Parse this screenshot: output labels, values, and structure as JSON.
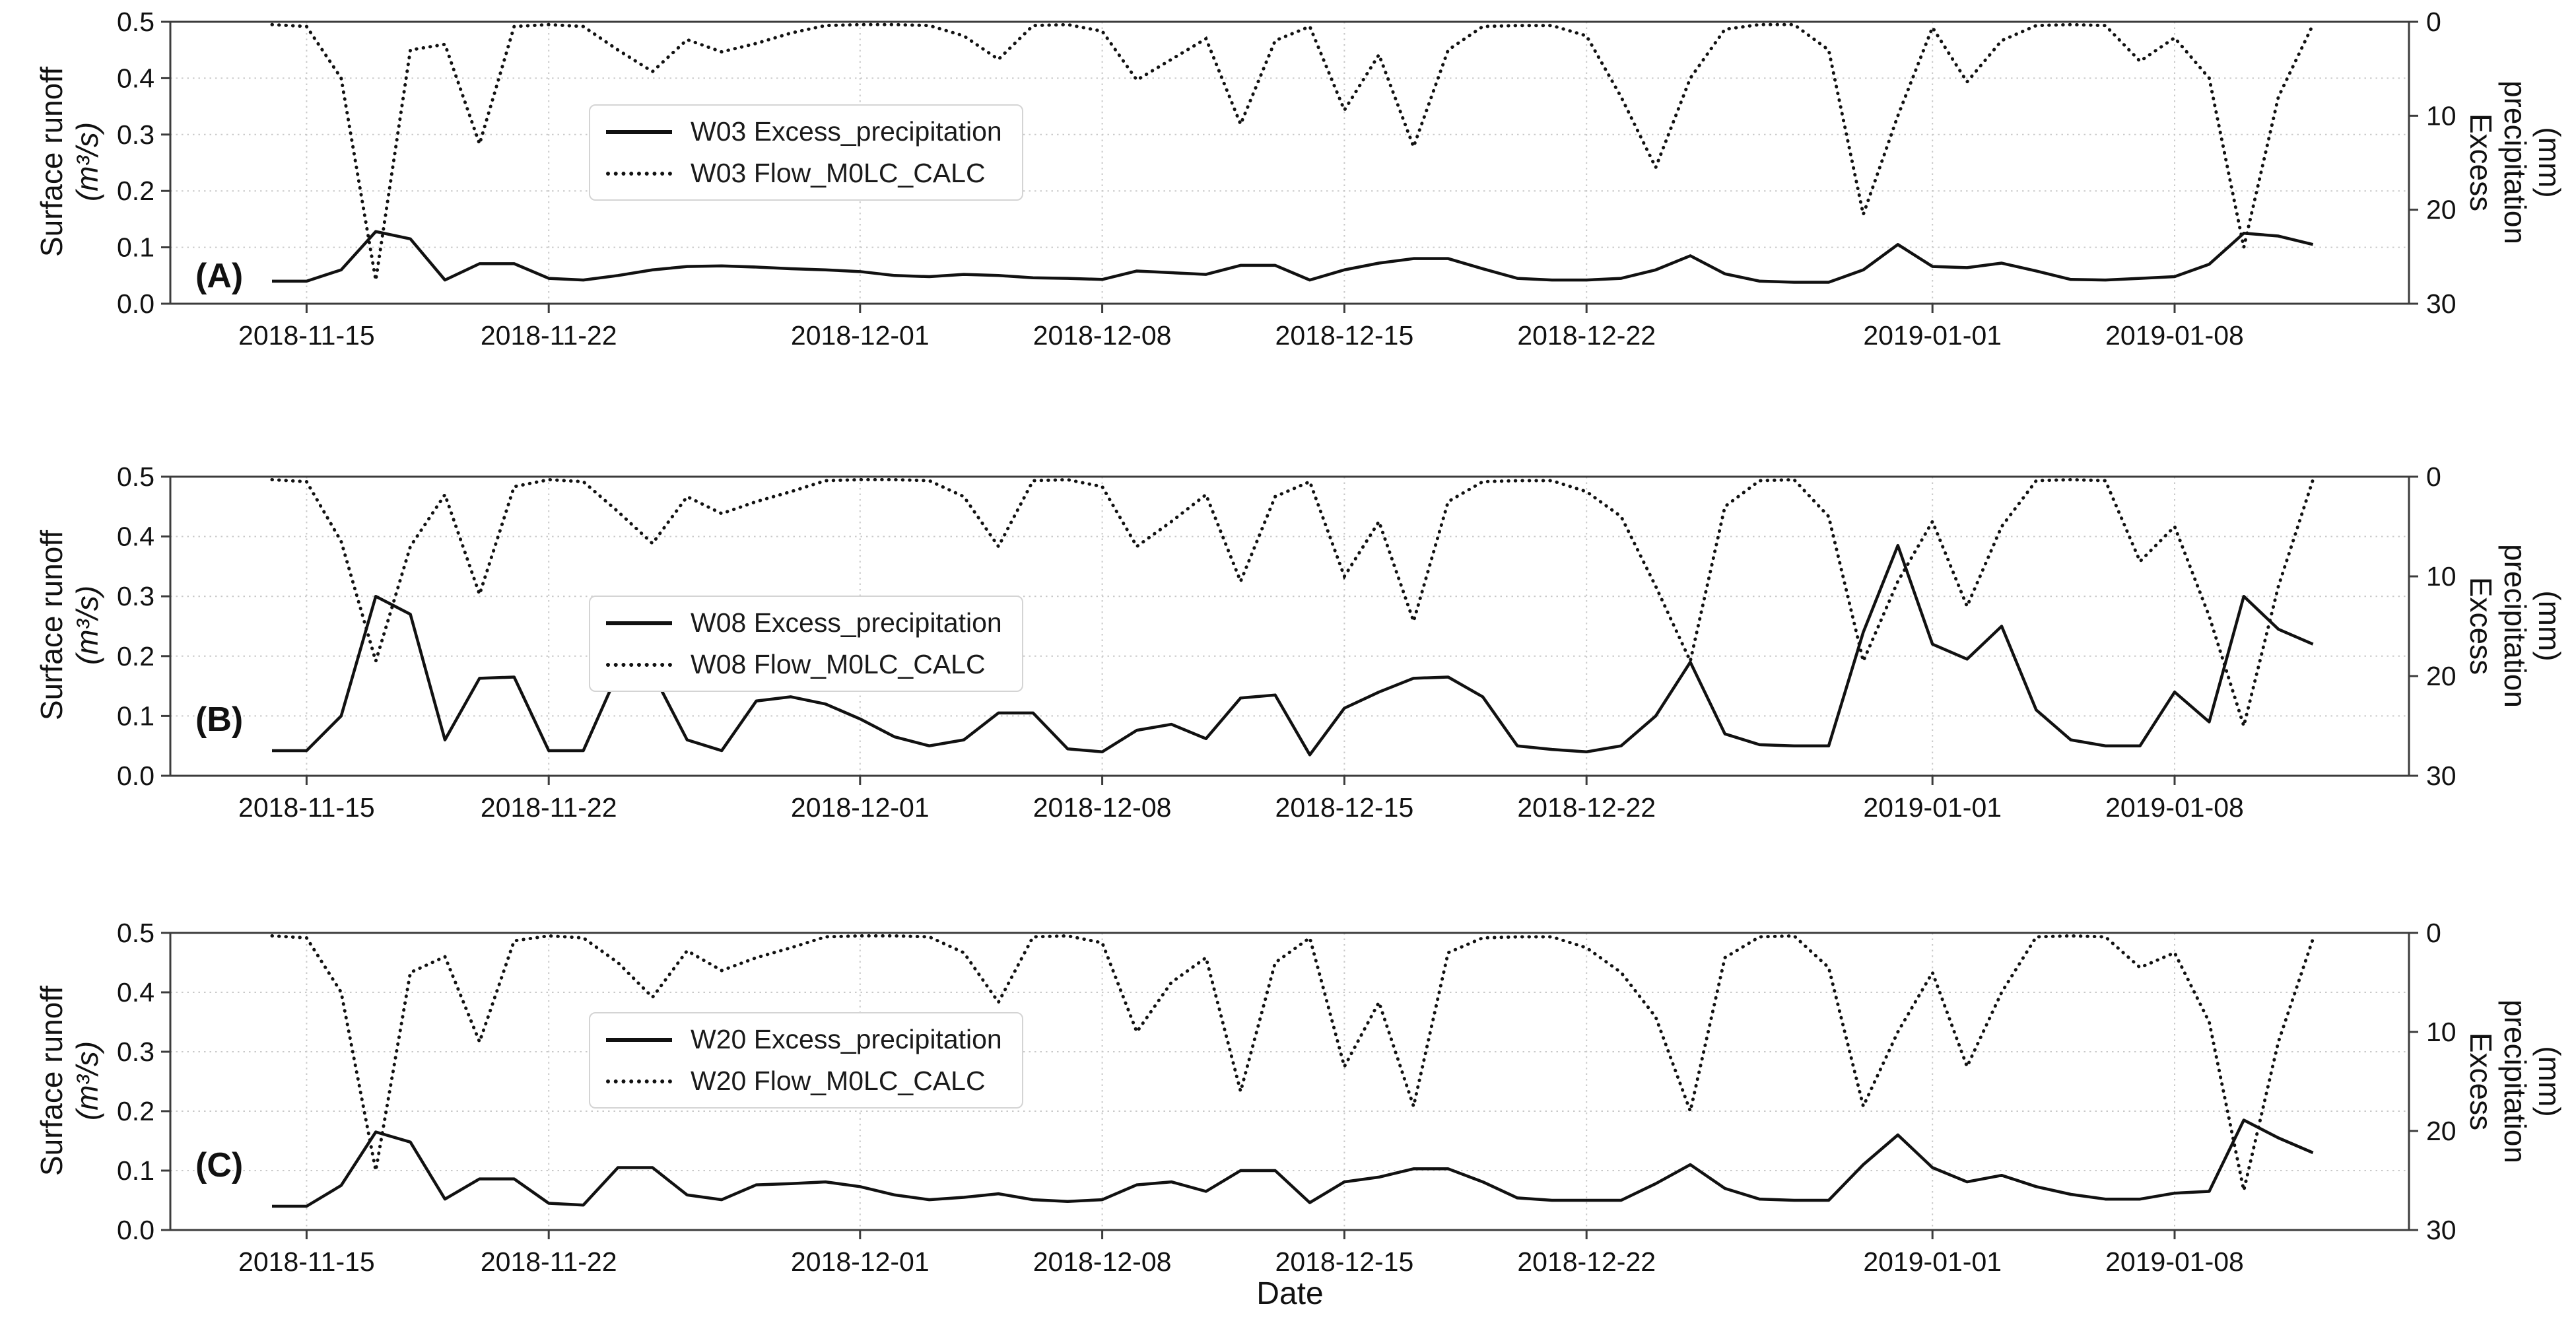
{
  "figure": {
    "xlabel": "Date",
    "line_color": "#111111",
    "grid_color": "#c9c9c9",
    "spine_color": "#3c3c3c"
  },
  "x_shared": {
    "dates": [
      "2018-11-14",
      "2018-11-15",
      "2018-11-16",
      "2018-11-17",
      "2018-11-18",
      "2018-11-19",
      "2018-11-20",
      "2018-11-21",
      "2018-11-22",
      "2018-11-23",
      "2018-11-24",
      "2018-11-25",
      "2018-11-26",
      "2018-11-27",
      "2018-11-28",
      "2018-11-29",
      "2018-11-30",
      "2018-12-01",
      "2018-12-02",
      "2018-12-03",
      "2018-12-04",
      "2018-12-05",
      "2018-12-06",
      "2018-12-07",
      "2018-12-08",
      "2018-12-09",
      "2018-12-10",
      "2018-12-11",
      "2018-12-12",
      "2018-12-13",
      "2018-12-14",
      "2018-12-15",
      "2018-12-16",
      "2018-12-17",
      "2018-12-18",
      "2018-12-19",
      "2018-12-20",
      "2018-12-21",
      "2018-12-22",
      "2018-12-23",
      "2018-12-24",
      "2018-12-25",
      "2018-12-26",
      "2018-12-27",
      "2018-12-28",
      "2018-12-29",
      "2018-12-30",
      "2018-12-31",
      "2019-01-01",
      "2019-01-02",
      "2019-01-03",
      "2019-01-04",
      "2019-01-05",
      "2019-01-06",
      "2019-01-07",
      "2019-01-08",
      "2019-01-09",
      "2019-01-10",
      "2019-01-11",
      "2019-01-12"
    ],
    "tick_labels": [
      "2018-11-15",
      "2018-11-22",
      "2018-12-01",
      "2018-12-08",
      "2018-12-15",
      "2018-12-22",
      "2019-01-01",
      "2019-01-08"
    ]
  },
  "chart_data": [
    {
      "type": "line",
      "panel_label": "(A)",
      "left_axis": {
        "title": [
          "Surface runoff",
          "(m³/s)"
        ],
        "ticks": [
          "0.0",
          "0.1",
          "0.2",
          "0.3",
          "0.4",
          "0.5"
        ],
        "range": [
          0.0,
          0.5
        ]
      },
      "right_axis": {
        "title": [
          "Excess",
          "precipitation",
          "(mm)"
        ],
        "ticks": [
          "0",
          "10",
          "20",
          "30"
        ],
        "range": [
          0,
          30
        ],
        "inverted": true
      },
      "series": [
        {
          "name": "W03 Excess_precipitation",
          "style": "solid",
          "axis": "left",
          "unit": "m3/s",
          "values": [
            0.04,
            0.04,
            0.06,
            0.128,
            0.115,
            0.042,
            0.071,
            0.071,
            0.045,
            0.042,
            0.05,
            0.06,
            0.066,
            0.067,
            0.065,
            0.062,
            0.06,
            0.057,
            0.05,
            0.048,
            0.052,
            0.05,
            0.046,
            0.045,
            0.043,
            0.058,
            0.055,
            0.052,
            0.068,
            0.068,
            0.042,
            0.06,
            0.072,
            0.08,
            0.08,
            0.062,
            0.045,
            0.042,
            0.042,
            0.045,
            0.06,
            0.085,
            0.053,
            0.04,
            0.038,
            0.038,
            0.06,
            0.105,
            0.066,
            0.064,
            0.072,
            0.058,
            0.043,
            0.042,
            0.045,
            0.048,
            0.07,
            0.125,
            0.12,
            0.105
          ]
        },
        {
          "name": "W03 Flow_M0LC_CALC",
          "style": "dotted",
          "axis": "right",
          "unit": "mm",
          "values": [
            0.3,
            0.5,
            6,
            27.5,
            3,
            2.4,
            13,
            0.5,
            0.3,
            0.5,
            3,
            5.3,
            1.9,
            3.2,
            2.3,
            1.2,
            0.4,
            0.3,
            0.3,
            0.4,
            1.5,
            4,
            0.4,
            0.3,
            1,
            6.2,
            4,
            1.8,
            10.9,
            2,
            0.5,
            9.4,
            3.5,
            13.3,
            3,
            0.5,
            0.4,
            0.4,
            1.5,
            8,
            15.5,
            6,
            0.8,
            0.3,
            0.3,
            3,
            20.5,
            10,
            0.6,
            6.4,
            2,
            0.4,
            0.3,
            0.4,
            4.2,
            1.7,
            6,
            24,
            8,
            0.3
          ]
        }
      ]
    },
    {
      "type": "line",
      "panel_label": "(B)",
      "left_axis": {
        "title": [
          "Surface runoff",
          "(m³/s)"
        ],
        "ticks": [
          "0.0",
          "0.1",
          "0.2",
          "0.3",
          "0.4",
          "0.5"
        ],
        "range": [
          0.0,
          0.5
        ]
      },
      "right_axis": {
        "title": [
          "Excess",
          "precipitation",
          "(mm)"
        ],
        "ticks": [
          "0",
          "10",
          "20",
          "30"
        ],
        "range": [
          0,
          30
        ],
        "inverted": true
      },
      "series": [
        {
          "name": "W08 Excess_precipitation",
          "style": "solid",
          "axis": "left",
          "unit": "m3/s",
          "values": [
            0.042,
            0.042,
            0.1,
            0.3,
            0.27,
            0.06,
            0.163,
            0.165,
            0.042,
            0.042,
            0.172,
            0.172,
            0.06,
            0.042,
            0.125,
            0.132,
            0.12,
            0.095,
            0.065,
            0.05,
            0.06,
            0.105,
            0.105,
            0.045,
            0.04,
            0.076,
            0.086,
            0.062,
            0.13,
            0.135,
            0.035,
            0.113,
            0.14,
            0.163,
            0.165,
            0.132,
            0.05,
            0.044,
            0.04,
            0.05,
            0.1,
            0.19,
            0.07,
            0.052,
            0.05,
            0.05,
            0.24,
            0.385,
            0.22,
            0.195,
            0.25,
            0.11,
            0.06,
            0.05,
            0.05,
            0.14,
            0.09,
            0.3,
            0.245,
            0.22
          ]
        },
        {
          "name": "W08 Flow_M0LC_CALC",
          "style": "dotted",
          "axis": "right",
          "unit": "mm",
          "values": [
            0.3,
            0.5,
            6.5,
            18.5,
            7,
            1.8,
            11.8,
            1,
            0.3,
            0.5,
            3.5,
            6.7,
            2,
            3.7,
            2.5,
            1.5,
            0.4,
            0.3,
            0.3,
            0.4,
            2,
            7,
            0.4,
            0.3,
            1,
            7,
            4.5,
            1.8,
            10.5,
            2,
            0.5,
            10,
            4.5,
            14.5,
            2.5,
            0.5,
            0.4,
            0.4,
            1.5,
            4,
            11,
            18.5,
            3,
            0.4,
            0.3,
            4,
            18.5,
            10.5,
            4.5,
            13,
            5,
            0.4,
            0.3,
            0.4,
            8.5,
            5,
            14,
            25,
            11,
            0.3
          ]
        }
      ]
    },
    {
      "type": "line",
      "panel_label": "(C)",
      "left_axis": {
        "title": [
          "Surface runoff",
          "(m³/s)"
        ],
        "ticks": [
          "0.0",
          "0.1",
          "0.2",
          "0.3",
          "0.4",
          "0.5"
        ],
        "range": [
          0.0,
          0.5
        ]
      },
      "right_axis": {
        "title": [
          "Excess",
          "precipitation",
          "(mm)"
        ],
        "ticks": [
          "0",
          "10",
          "20",
          "30"
        ],
        "range": [
          0,
          30
        ],
        "inverted": true
      },
      "series": [
        {
          "name": "W20 Excess_precipitation",
          "style": "solid",
          "axis": "left",
          "unit": "m3/s",
          "values": [
            0.04,
            0.04,
            0.075,
            0.165,
            0.148,
            0.052,
            0.086,
            0.086,
            0.045,
            0.042,
            0.105,
            0.105,
            0.059,
            0.051,
            0.076,
            0.078,
            0.081,
            0.073,
            0.059,
            0.051,
            0.055,
            0.061,
            0.051,
            0.048,
            0.051,
            0.076,
            0.081,
            0.065,
            0.1,
            0.1,
            0.046,
            0.081,
            0.089,
            0.103,
            0.103,
            0.081,
            0.054,
            0.05,
            0.05,
            0.05,
            0.078,
            0.11,
            0.07,
            0.052,
            0.05,
            0.05,
            0.11,
            0.16,
            0.105,
            0.081,
            0.092,
            0.073,
            0.06,
            0.052,
            0.052,
            0.062,
            0.065,
            0.185,
            0.155,
            0.13
          ]
        },
        {
          "name": "W20 Flow_M0LC_CALC",
          "style": "dotted",
          "axis": "right",
          "unit": "mm",
          "values": [
            0.3,
            0.5,
            6,
            24,
            4,
            2.4,
            11,
            0.8,
            0.3,
            0.5,
            3,
            6.5,
            1.8,
            3.8,
            2.5,
            1.5,
            0.4,
            0.3,
            0.3,
            0.4,
            2,
            7,
            0.4,
            0.3,
            1,
            10,
            5,
            2.5,
            16,
            3,
            0.5,
            13.5,
            7,
            17.5,
            2,
            0.5,
            0.4,
            0.4,
            1.5,
            4,
            8.5,
            18,
            2.5,
            0.4,
            0.3,
            3.5,
            17.5,
            10,
            4,
            13.5,
            6,
            0.4,
            0.3,
            0.4,
            3.5,
            2,
            9,
            26,
            11,
            0.6
          ]
        }
      ]
    }
  ]
}
